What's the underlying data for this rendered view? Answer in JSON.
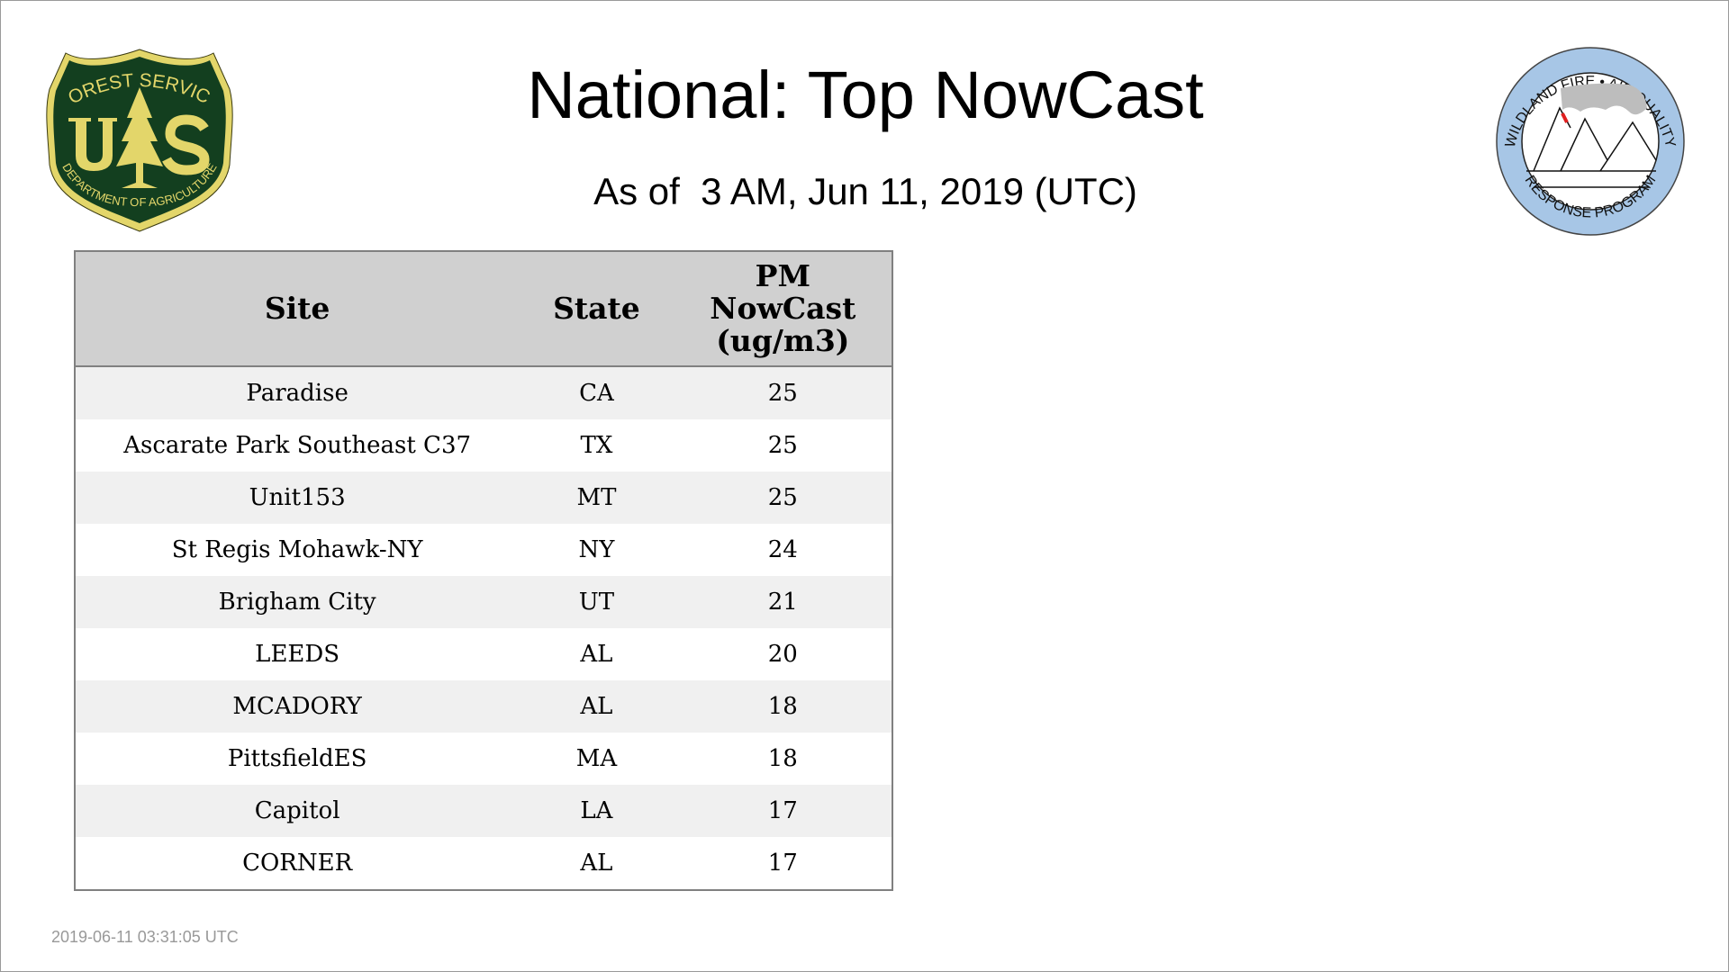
{
  "header": {
    "title": "National: Top NowCast",
    "subtitle": "As of  3 AM, Jun 11, 2019 (UTC)"
  },
  "logos": {
    "left": {
      "top_text": "FOREST SERVICE",
      "letters": "U S",
      "bottom_text": "DEPARTMENT OF AGRICULTURE",
      "colors": {
        "green": "#133f1f",
        "yellow": "#e3d66a"
      }
    },
    "right": {
      "top_text": "WILDLAND FIRE • AIR QUALITY",
      "bottom_text": "RESPONSE PROGRAM",
      "colors": {
        "ring": "#a7c6e6",
        "smoke": "#bdbdbd",
        "flame": "#e02020"
      }
    }
  },
  "table": {
    "columns": [
      "Site",
      "State",
      "PM\nNowCast\n(ug/m3)"
    ],
    "column_lines": [
      "PM",
      "NowCast",
      "(ug/m3)"
    ],
    "rows": [
      [
        "Paradise",
        "CA",
        "25"
      ],
      [
        "Ascarate Park Southeast C37",
        "TX",
        "25"
      ],
      [
        "Unit153",
        "MT",
        "25"
      ],
      [
        "St Regis Mohawk-NY",
        "NY",
        "24"
      ],
      [
        "Brigham City",
        "UT",
        "21"
      ],
      [
        "LEEDS",
        "AL",
        "20"
      ],
      [
        "MCADORY",
        "AL",
        "18"
      ],
      [
        "PittsfieldES",
        "MA",
        "18"
      ],
      [
        "Capitol",
        "LA",
        "17"
      ],
      [
        "CORNER",
        "AL",
        "17"
      ]
    ]
  },
  "footer": {
    "timestamp": "2019-06-11 03:31:05 UTC"
  }
}
